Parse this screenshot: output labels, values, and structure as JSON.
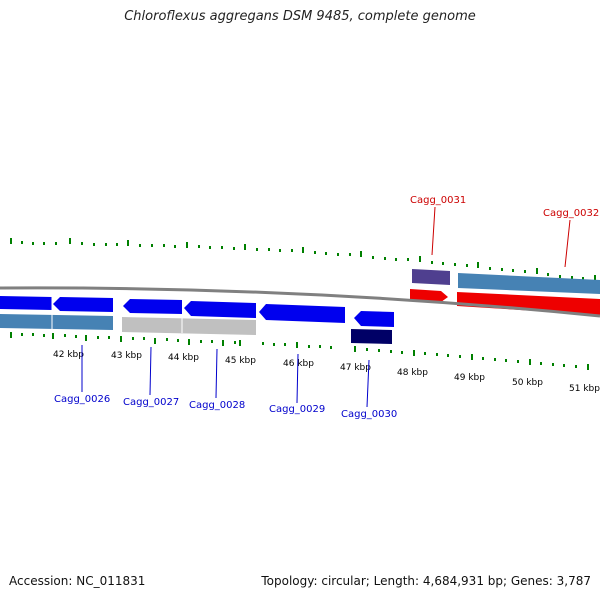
{
  "title": "Chloroflexus aggregans DSM 9485, complete genome",
  "footer": {
    "accession": "Accession: NC_011831",
    "topology": "Topology: circular; Length: 4,684,931 bp; Genes: 3,787"
  },
  "ticks": [
    "42 kbp",
    "43 kbp",
    "44 kbp",
    "45 kbp",
    "46 kbp",
    "47 kbp",
    "48 kbp",
    "49 kbp",
    "50 kbp",
    "51 kbp"
  ],
  "genes": [
    {
      "label": "Cagg_0026",
      "color": "#0000cc"
    },
    {
      "label": "Cagg_0027",
      "color": "#0000cc"
    },
    {
      "label": "Cagg_0028",
      "color": "#0000cc"
    },
    {
      "label": "Cagg_0029",
      "color": "#0000cc"
    },
    {
      "label": "Cagg_0030",
      "color": "#0000cc"
    },
    {
      "label": "Cagg_0031",
      "color": "#cc0000"
    },
    {
      "label": "Cagg_0032",
      "color": "#cc0000"
    }
  ],
  "colors": {
    "reverse_strand": "#0000ee",
    "forward_strand": "#ee0000",
    "tick_marks": "#008000",
    "backbone": "#808080"
  }
}
